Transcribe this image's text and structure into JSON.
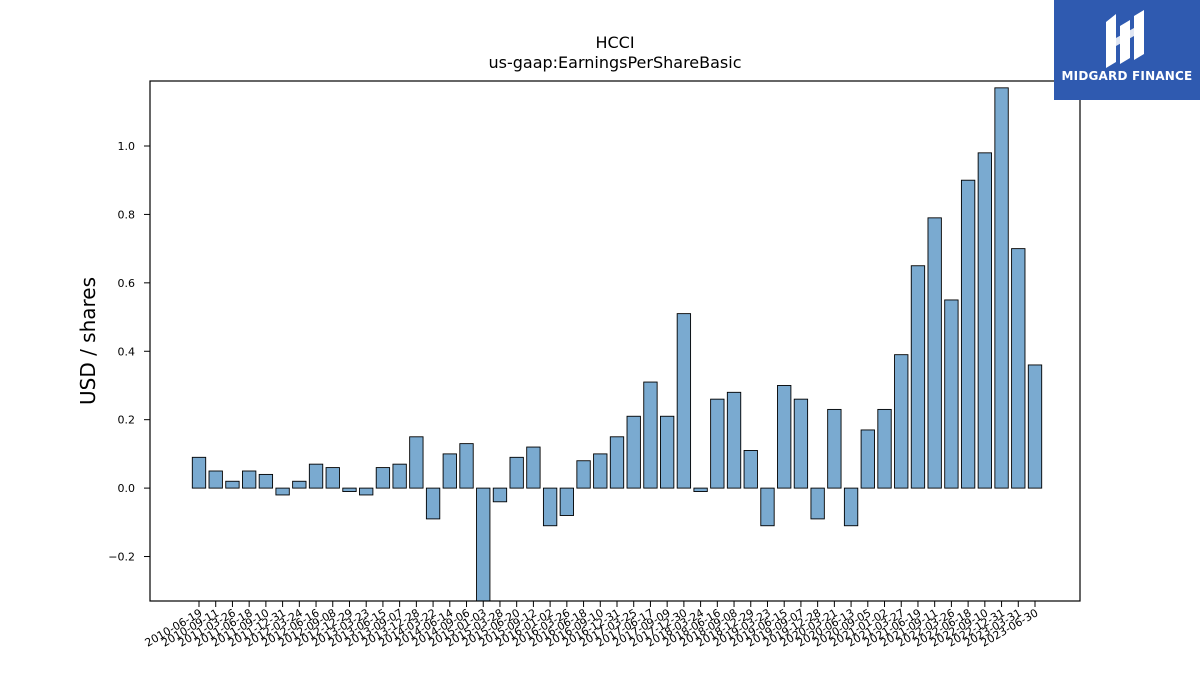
{
  "chart_data": {
    "type": "bar",
    "title": "HCCI",
    "subtitle": "us-gaap:EarningsPerShareBasic",
    "xlabel": "",
    "ylabel": "USD / shares",
    "ylim": [
      -0.33,
      1.19
    ],
    "yticks": [
      -0.2,
      0.0,
      0.2,
      0.4,
      0.6,
      0.8,
      1.0
    ],
    "ytick_labels": [
      "−0.2",
      "0.0",
      "0.2",
      "0.4",
      "0.6",
      "0.8",
      "1.0"
    ],
    "grid": false,
    "bar_color": "#7aaad0",
    "bar_edge_color": "#000000",
    "categories": [
      "2010-06-19",
      "2010-09-11",
      "2011-03-26",
      "2011-06-18",
      "2011-09-10",
      "2011-12-31",
      "2012-03-24",
      "2012-06-16",
      "2012-09-08",
      "2012-12-29",
      "2013-03-23",
      "2013-06-15",
      "2013-09-07",
      "2013-12-28",
      "2014-03-22",
      "2014-06-14",
      "2014-09-06",
      "2015-01-03",
      "2015-03-28",
      "2015-06-20",
      "2015-09-12",
      "2016-01-02",
      "2016-03-26",
      "2016-06-18",
      "2016-09-10",
      "2016-12-31",
      "2017-03-25",
      "2017-06-17",
      "2017-09-09",
      "2017-12-30",
      "2018-03-24",
      "2018-06-16",
      "2018-09-08",
      "2018-12-29",
      "2019-03-23",
      "2019-06-15",
      "2019-09-07",
      "2019-12-28",
      "2020-03-21",
      "2020-06-13",
      "2020-09-05",
      "2021-01-02",
      "2021-03-27",
      "2021-06-19",
      "2021-09-11",
      "2022-03-26",
      "2022-06-18",
      "2022-09-10",
      "2022-12-31",
      "2023-03-31",
      "2023-06-30"
    ],
    "values": [
      0.09,
      0.05,
      0.02,
      0.05,
      0.04,
      -0.02,
      0.02,
      0.07,
      0.06,
      -0.01,
      -0.02,
      0.06,
      0.07,
      0.15,
      -0.09,
      0.1,
      0.13,
      -0.36,
      -0.04,
      0.09,
      0.12,
      -0.11,
      -0.08,
      0.08,
      0.1,
      0.15,
      0.21,
      0.31,
      0.21,
      0.51,
      -0.01,
      0.26,
      0.28,
      0.11,
      -0.11,
      0.3,
      0.26,
      -0.09,
      0.23,
      -0.11,
      0.17,
      0.23,
      0.39,
      0.65,
      0.79,
      0.55,
      0.9,
      0.98,
      1.17,
      0.7,
      0.36
    ]
  },
  "logo": {
    "text": "MIDGARD FINANCE",
    "background": "#2f5ab0"
  }
}
